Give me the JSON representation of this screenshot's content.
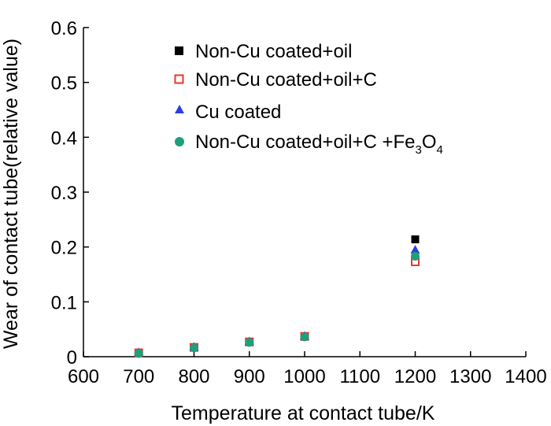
{
  "chart_data": {
    "type": "scatter",
    "title": "",
    "xlabel": "Temperature at contact tube/K",
    "ylabel": "Wear of contact tube(relative value)",
    "xlim": [
      600,
      1400
    ],
    "ylim": [
      0,
      0.6
    ],
    "xticks": [
      600,
      700,
      800,
      900,
      1000,
      1100,
      1200,
      1300,
      1400
    ],
    "yticks": [
      0,
      0.1,
      0.2,
      0.3,
      0.4,
      0.5,
      0.6
    ],
    "xtick_labels": [
      "600",
      "700",
      "800",
      "900",
      "1000",
      "1100",
      "1200",
      "1300",
      "1400"
    ],
    "ytick_labels": [
      "0",
      "0.1",
      "0.2",
      "0.3",
      "0.4",
      "0.5",
      "0.6"
    ],
    "grid": false,
    "legend_position": "top-right",
    "series": [
      {
        "name": "Non-Cu coated+oil",
        "marker": "filled-square",
        "color": "#000000",
        "x": [
          700,
          800,
          900,
          1000,
          1200
        ],
        "y": [
          0.007,
          0.017,
          0.027,
          0.037,
          0.214
        ]
      },
      {
        "name": "Non-Cu coated+oil+C",
        "marker": "open-square",
        "color": "#e8382c",
        "x": [
          700,
          800,
          900,
          1000,
          1200
        ],
        "y": [
          0.007,
          0.017,
          0.027,
          0.037,
          0.173
        ]
      },
      {
        "name": "Cu coated",
        "marker": "triangle",
        "color": "#2b3fe0",
        "x": [
          700,
          800,
          900,
          1000,
          1200
        ],
        "y": [
          0.008,
          0.018,
          0.028,
          0.038,
          0.195
        ]
      },
      {
        "name": "Non-Cu coated+oil+C +Fe3O4",
        "legend_parts": {
          "prefix": "Non-Cu coated+oil+C +Fe",
          "sub1": "3",
          "mid": "O",
          "sub2": "4"
        },
        "marker": "circle",
        "color": "#1fa07a",
        "x": [
          700,
          800,
          900,
          1000,
          1200
        ],
        "y": [
          0.006,
          0.016,
          0.026,
          0.036,
          0.183
        ]
      }
    ]
  }
}
